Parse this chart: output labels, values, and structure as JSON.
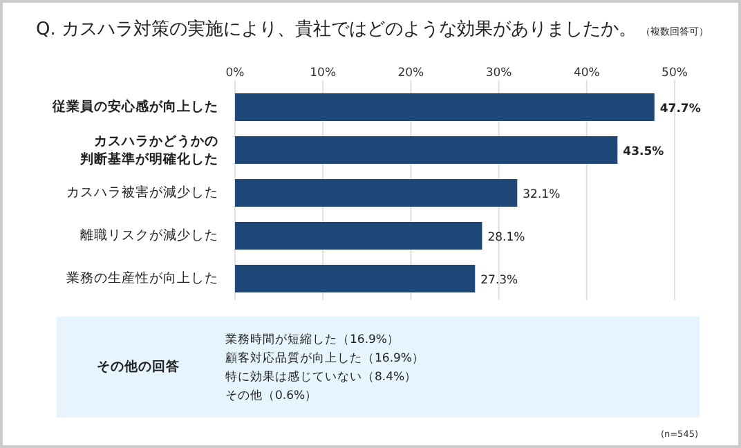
{
  "chart_data": {
    "type": "bar",
    "orientation": "horizontal",
    "title": "Q. カスハラ対策の実施により、貴社ではどのような効果がありましたか。",
    "subtitle": "（複数回答可）",
    "categories": [
      "従業員の安心感が向上した",
      "カスハラかどうかの判断基準が明確化した",
      "カスハラ被害が減少した",
      "離職リスクが減少した",
      "業務の生産性が向上した"
    ],
    "values": [
      47.7,
      43.5,
      32.1,
      28.1,
      27.3
    ],
    "value_labels": [
      "47.7%",
      "43.5%",
      "32.1%",
      "28.1%",
      "27.3%"
    ],
    "color": "#1f4778",
    "xlim": [
      0,
      50
    ],
    "xticks": [
      {
        "value": 0,
        "label": "0%"
      },
      {
        "value": 10,
        "label": "10%"
      },
      {
        "value": 20,
        "label": "20%"
      },
      {
        "value": 30,
        "label": "30%"
      },
      {
        "value": 40,
        "label": "40%"
      },
      {
        "value": 50,
        "label": "50%"
      }
    ],
    "grid": "x",
    "annotations": [
      "その他の回答",
      "業務時間が短縮した（16.9%）",
      "顧客対応品質が向上した（16.9%）",
      "特に効果は感じていない（8.4%）",
      "その他（0.6%）",
      "(n=545)"
    ]
  }
}
